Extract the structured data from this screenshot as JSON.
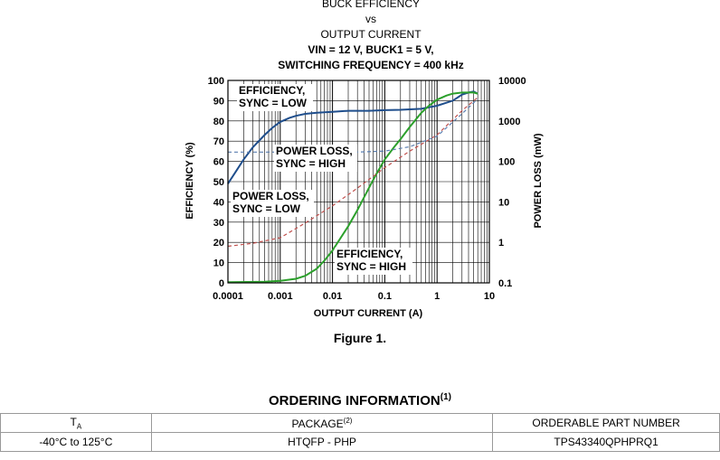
{
  "title_lines": [
    "BUCK EFFICIENCY",
    "vs",
    "OUTPUT CURRENT",
    "VIN = 12 V, BUCK1 = 5 V,",
    "SWITCHING FREQUENCY = 400 kHz"
  ],
  "chart_data": {
    "type": "line",
    "xlabel": "OUTPUT CURRENT (A)",
    "ylabel": "EFFICIENCY (%)",
    "y2label": "POWER LOSS (mW)",
    "x_scale": "log",
    "y2_scale": "log",
    "xlim": [
      0.0001,
      10
    ],
    "ylim": [
      0,
      100
    ],
    "y2lim": [
      0.1,
      10000
    ],
    "x_ticks": [
      "0.0001",
      "0.001",
      "0.01",
      "0.1",
      "1",
      "10"
    ],
    "y_ticks": [
      "0",
      "10",
      "20",
      "30",
      "40",
      "50",
      "60",
      "70",
      "80",
      "90",
      "100"
    ],
    "y2_ticks": [
      "0.1",
      "1",
      "10",
      "100",
      "1000",
      "10000"
    ],
    "grid": true,
    "annotations": [
      {
        "lines": [
          "EFFICIENCY,",
          "SYNC = LOW"
        ]
      },
      {
        "lines": [
          "POWER LOSS,",
          "SYNC = HIGH"
        ]
      },
      {
        "lines": [
          "POWER LOSS,",
          "SYNC = LOW"
        ]
      },
      {
        "lines": [
          "EFFICIENCY,",
          "SYNC = HIGH"
        ]
      }
    ],
    "series": [
      {
        "name": "EFFICIENCY, SYNC = LOW",
        "axis": "left",
        "color": "#1f4e8c",
        "style": "solid",
        "x": [
          0.0001,
          0.00015,
          0.0002,
          0.0003,
          0.0005,
          0.0007,
          0.001,
          0.0015,
          0.002,
          0.003,
          0.005,
          0.01,
          0.02,
          0.05,
          0.1,
          0.2,
          0.5,
          1,
          2,
          3,
          4,
          5,
          6
        ],
        "y": [
          49,
          56,
          61,
          67,
          73,
          76.5,
          79.5,
          81.5,
          82.5,
          83.5,
          84,
          84.5,
          85,
          85,
          85.3,
          85.5,
          86,
          87.5,
          90,
          93,
          94,
          94.5,
          93.5
        ]
      },
      {
        "name": "EFFICIENCY, SYNC = HIGH",
        "axis": "left",
        "color": "#2ca02c",
        "style": "solid",
        "x": [
          0.0001,
          0.0005,
          0.001,
          0.002,
          0.003,
          0.005,
          0.007,
          0.01,
          0.02,
          0.03,
          0.05,
          0.07,
          0.1,
          0.15,
          0.2,
          0.3,
          0.5,
          0.7,
          1,
          1.5,
          2,
          3,
          4,
          5,
          6
        ],
        "y": [
          0.3,
          0.6,
          1,
          2,
          3.5,
          7,
          11,
          16,
          28,
          36,
          47,
          54,
          61,
          67,
          71,
          77,
          84,
          87.5,
          90.5,
          92.5,
          93.5,
          94,
          94,
          94,
          93.5
        ]
      },
      {
        "name": "POWER LOSS, SYNC = LOW",
        "axis": "right",
        "color": "#c0504d",
        "style": "dashed",
        "x": [
          0.0001,
          0.0003,
          0.001,
          0.003,
          0.01,
          0.03,
          0.1,
          0.3,
          1,
          3,
          6
        ],
        "y": [
          0.8,
          0.95,
          1.3,
          3,
          8,
          22,
          70,
          180,
          450,
          1800,
          3800
        ]
      },
      {
        "name": "POWER LOSS, SYNC = HIGH",
        "axis": "right",
        "color": "#5b7fb0",
        "style": "dashed",
        "x": [
          0.0001,
          0.0003,
          0.001,
          0.003,
          0.01,
          0.03,
          0.1,
          0.3,
          1,
          3,
          6
        ],
        "y": [
          170,
          170,
          170,
          170,
          170,
          170,
          180,
          230,
          420,
          1500,
          3500
        ]
      }
    ]
  },
  "figure_caption": "Figure 1.",
  "ordering": {
    "title": "ORDERING INFORMATION",
    "title_note": "(1)",
    "headers": {
      "ta_main": "T",
      "ta_sub": "A",
      "package": "PACKAGE",
      "package_note": "(2)",
      "part": "ORDERABLE PART NUMBER"
    },
    "rows": [
      {
        "ta": "-40°C to 125°C",
        "package": "HTQFP - PHP",
        "part": "TPS43340QPHPRQ1"
      }
    ]
  }
}
